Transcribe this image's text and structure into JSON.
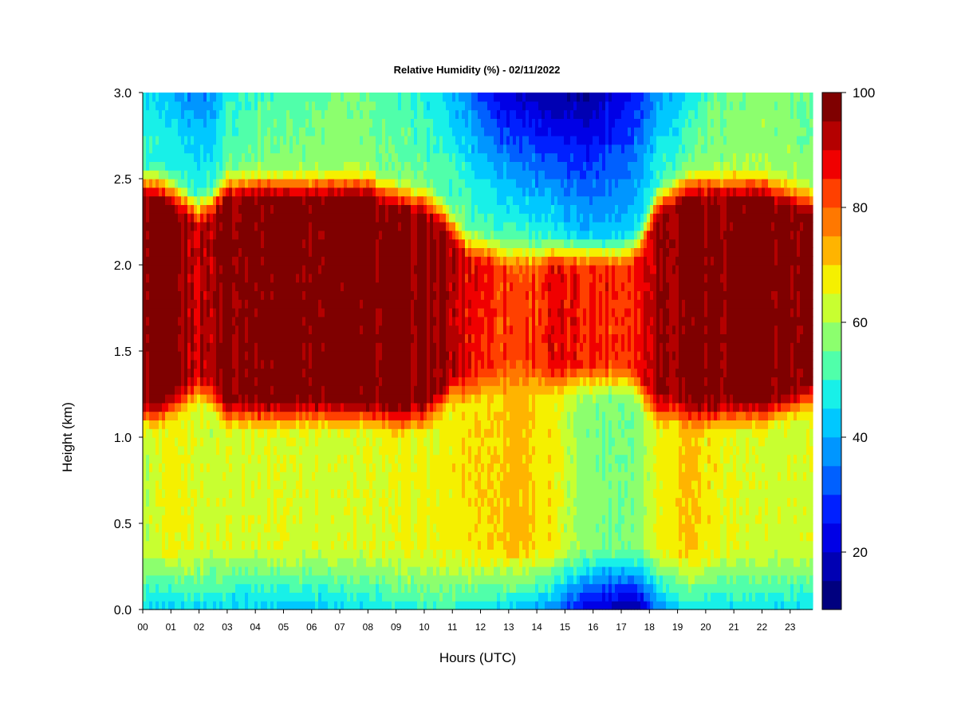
{
  "chart_data": {
    "type": "heatmap",
    "title": "Relative Humidity (%) - 02/11/2022",
    "xlabel": "Hours (UTC)",
    "ylabel": "Height (km)",
    "xlim": [
      0,
      23.8
    ],
    "ylim": [
      0,
      3.0
    ],
    "x_ticks": [
      "00",
      "01",
      "02",
      "03",
      "04",
      "05",
      "06",
      "07",
      "08",
      "09",
      "10",
      "11",
      "12",
      "13",
      "14",
      "15",
      "16",
      "17",
      "18",
      "19",
      "20",
      "21",
      "22",
      "23"
    ],
    "y_ticks": [
      "0.0",
      "0.5",
      "1.0",
      "1.5",
      "2.0",
      "2.5",
      "3.0"
    ],
    "colorbar": {
      "range": [
        10,
        100
      ],
      "ticks": [
        "20",
        "40",
        "60",
        "80",
        "100"
      ],
      "levels": [
        10,
        15,
        20,
        25,
        30,
        35,
        40,
        45,
        50,
        55,
        60,
        65,
        70,
        75,
        80,
        85,
        90,
        95,
        100
      ],
      "colors": [
        "#00007f",
        "#0000b3",
        "#0000e6",
        "#0020ff",
        "#0060ff",
        "#0096ff",
        "#00c8ff",
        "#18f0e8",
        "#50ffaa",
        "#8cff6e",
        "#c8ff30",
        "#f5f000",
        "#ffb400",
        "#ff7800",
        "#ff4000",
        "#f00000",
        "#b40000",
        "#7f0000"
      ]
    },
    "time_hours": [
      0,
      0.5,
      1,
      1.5,
      2,
      2.5,
      3,
      4,
      5,
      6,
      7,
      8,
      9,
      10,
      10.5,
      11,
      11.5,
      12,
      12.5,
      13,
      13.5,
      14,
      14.5,
      15,
      15.5,
      16,
      16.5,
      17,
      17.5,
      17.8,
      18.2,
      19,
      19.5,
      20,
      21,
      22,
      23,
      23.8
    ],
    "height_km": [
      0,
      0.1,
      0.2,
      0.3,
      0.4,
      0.5,
      0.6,
      0.7,
      0.8,
      0.9,
      1.0,
      1.1,
      1.2,
      1.3,
      1.4,
      1.5,
      1.6,
      1.7,
      1.8,
      1.9,
      2.0,
      2.1,
      2.2,
      2.3,
      2.4,
      2.5,
      2.6,
      2.7,
      2.8,
      2.9,
      3.0
    ],
    "bottom_humidity_pct": [
      45,
      43,
      42,
      44,
      46,
      45,
      44,
      43,
      42,
      42,
      44,
      45,
      47,
      49,
      50,
      50,
      48,
      47,
      45,
      44,
      42,
      40,
      36,
      30,
      24,
      20,
      18,
      16,
      15,
      18,
      35,
      44,
      48,
      45,
      45,
      45,
      45,
      45
    ],
    "mid_humidity_pct": [
      62,
      63,
      66,
      66,
      64,
      63,
      64,
      64,
      65,
      64,
      63,
      64,
      65,
      66,
      66,
      67,
      69,
      69,
      70,
      72,
      72,
      69,
      68,
      62,
      59,
      57,
      56,
      56,
      57,
      59,
      66,
      70,
      72,
      68,
      65,
      63,
      63,
      63
    ],
    "moist_layer_center_km": [
      1.8,
      1.8,
      1.8,
      1.8,
      1.8,
      1.8,
      1.8,
      1.8,
      1.8,
      1.8,
      1.8,
      1.8,
      1.75,
      1.75,
      1.75,
      1.75,
      1.7,
      1.7,
      1.7,
      1.7,
      1.7,
      1.7,
      1.7,
      1.7,
      1.7,
      1.7,
      1.7,
      1.7,
      1.7,
      1.7,
      1.75,
      1.8,
      1.8,
      1.8,
      1.8,
      1.8,
      1.8,
      1.8
    ],
    "moist_layer_halfwidth_km": [
      0.55,
      0.55,
      0.5,
      0.45,
      0.4,
      0.45,
      0.55,
      0.55,
      0.55,
      0.55,
      0.55,
      0.55,
      0.53,
      0.5,
      0.45,
      0.35,
      0.3,
      0.28,
      0.25,
      0.22,
      0.22,
      0.22,
      0.25,
      0.25,
      0.25,
      0.25,
      0.25,
      0.25,
      0.28,
      0.35,
      0.48,
      0.52,
      0.55,
      0.55,
      0.55,
      0.55,
      0.5,
      0.45
    ],
    "moist_layer_peak_pct": [
      98,
      98,
      96,
      94,
      92,
      94,
      98,
      99,
      99,
      99,
      99,
      99,
      98,
      97,
      95,
      92,
      89,
      87,
      85,
      83,
      83,
      85,
      87,
      87,
      86,
      86,
      85,
      85,
      86,
      88,
      95,
      97,
      98,
      98,
      98,
      98,
      97,
      95
    ],
    "upper_humidity_pct": [
      46,
      43,
      40,
      38,
      36,
      38,
      48,
      52,
      52,
      54,
      56,
      54,
      50,
      48,
      45,
      40,
      36,
      30,
      25,
      20,
      18,
      17,
      15,
      14,
      15,
      16,
      20,
      22,
      26,
      30,
      38,
      42,
      48,
      52,
      56,
      56,
      56,
      52
    ]
  }
}
